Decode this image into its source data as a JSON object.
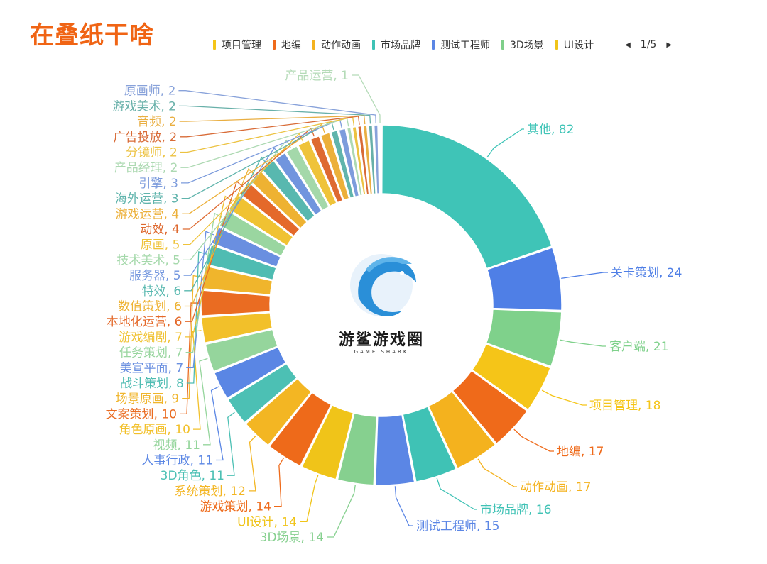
{
  "title": "在叠纸干啥",
  "legend": {
    "items": [
      {
        "label": "项目管理",
        "color": "#f5c518"
      },
      {
        "label": "地编",
        "color": "#ef6a1a"
      },
      {
        "label": "动作动画",
        "color": "#f4b21e"
      },
      {
        "label": "市场品牌",
        "color": "#3fc2b5"
      },
      {
        "label": "测试工程师",
        "color": "#5b86e5"
      },
      {
        "label": "3D场景",
        "color": "#7fcf8a"
      },
      {
        "label": "UI设计",
        "color": "#f0c419"
      }
    ],
    "page": "1/5",
    "prev_icon": "triangle-left-icon",
    "next_icon": "triangle-right-icon"
  },
  "logo": {
    "name": "游鲨游戏圈",
    "sub": "GAME SHARK"
  },
  "chart_data": {
    "type": "pie",
    "variant": "donut",
    "slices": [
      {
        "label": "其他",
        "value": 82,
        "color": "#3fc4b7"
      },
      {
        "label": "关卡策划",
        "value": 24,
        "color": "#4f7fe6"
      },
      {
        "label": "客户端",
        "value": 21,
        "color": "#7fd18b"
      },
      {
        "label": "项目管理",
        "value": 18,
        "color": "#f5c518"
      },
      {
        "label": "地编",
        "value": 17,
        "color": "#ef6a1a"
      },
      {
        "label": "动作动画",
        "value": 17,
        "color": "#f4b21e"
      },
      {
        "label": "市场品牌",
        "value": 16,
        "color": "#3fc2b5"
      },
      {
        "label": "测试工程师",
        "value": 15,
        "color": "#5b86e5"
      },
      {
        "label": "3D场景",
        "value": 14,
        "color": "#86d08f"
      },
      {
        "label": "UI设计",
        "value": 14,
        "color": "#f0c419"
      },
      {
        "label": "游戏策划",
        "value": 14,
        "color": "#ee6a1a"
      },
      {
        "label": "系统策划",
        "value": 12,
        "color": "#f3b623"
      },
      {
        "label": "3D角色",
        "value": 11,
        "color": "#4cc0b4"
      },
      {
        "label": "人事行政",
        "value": 11,
        "color": "#5a86e4"
      },
      {
        "label": "视频",
        "value": 11,
        "color": "#95d59c"
      },
      {
        "label": "角色原画",
        "value": 10,
        "color": "#f2c02a"
      },
      {
        "label": "文案策划",
        "value": 10,
        "color": "#ea6c22"
      },
      {
        "label": "场景原画",
        "value": 9,
        "color": "#f0b52c"
      },
      {
        "label": "战斗策划",
        "value": 8,
        "color": "#4fbcb2"
      },
      {
        "label": "美宣平面",
        "value": 7,
        "color": "#6a8fe0"
      },
      {
        "label": "任务策划",
        "value": 7,
        "color": "#9ad6a0"
      },
      {
        "label": "游戏编剧",
        "value": 7,
        "color": "#f0c232"
      },
      {
        "label": "本地化运营",
        "value": 6,
        "color": "#e4692a"
      },
      {
        "label": "数值策划",
        "value": 6,
        "color": "#eeb232"
      },
      {
        "label": "特效",
        "value": 6,
        "color": "#58b8af"
      },
      {
        "label": "服务器",
        "value": 5,
        "color": "#7195de"
      },
      {
        "label": "技术美术",
        "value": 5,
        "color": "#a4d8aa"
      },
      {
        "label": "原画",
        "value": 5,
        "color": "#efc33a"
      },
      {
        "label": "动效",
        "value": 4,
        "color": "#de6a31"
      },
      {
        "label": "游戏运营",
        "value": 4,
        "color": "#ecb03a"
      },
      {
        "label": "海外运营",
        "value": 3,
        "color": "#60b4ac"
      },
      {
        "label": "引擎",
        "value": 3,
        "color": "#7d9cdc"
      },
      {
        "label": "产品经理",
        "value": 2,
        "color": "#add9b2"
      },
      {
        "label": "分镜师",
        "value": 2,
        "color": "#ecc241"
      },
      {
        "label": "广告投放",
        "value": 2,
        "color": "#d86b37"
      },
      {
        "label": "音频",
        "value": 2,
        "color": "#e9ae41"
      },
      {
        "label": "游戏美术",
        "value": 2,
        "color": "#68b0a9"
      },
      {
        "label": "原画师",
        "value": 2,
        "color": "#88a2da"
      },
      {
        "label": "产品运营",
        "value": 1,
        "color": "#b5dbb8"
      }
    ]
  }
}
